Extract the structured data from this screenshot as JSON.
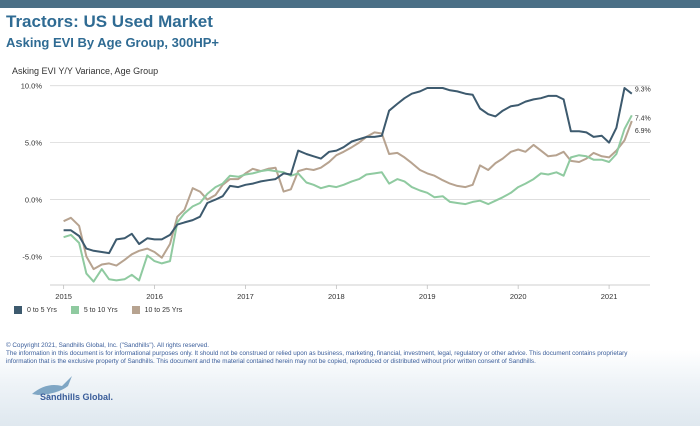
{
  "header": {
    "title": "Tractors:  US Used Market",
    "subtitle": "Asking EVI By Age Group, 300HP+"
  },
  "chart_label": "Asking EVI Y/Y Variance, Age Group",
  "colors": {
    "topbar": "#4a6f86",
    "title": "#2f6b93",
    "series_0_5": "#3d5a6e",
    "series_5_10": "#8fcaa0",
    "series_10_25": "#b7a390",
    "footer_text": "#3a5d9a"
  },
  "chart_data": {
    "type": "line",
    "y_unit": "percent",
    "ylim": [
      -7.5,
      10.5
    ],
    "yticks": [
      10.0,
      5.0,
      0.0,
      -5.0
    ],
    "ytick_labels": [
      "10.0%",
      "5.0%",
      "0.0%",
      "-5.0%"
    ],
    "xlim": [
      2014.85,
      2021.45
    ],
    "xticks": [
      2015,
      2016,
      2017,
      2018,
      2019,
      2020,
      2021
    ],
    "xtick_labels": [
      "2015",
      "2016",
      "2017",
      "2018",
      "2019",
      "2020",
      "2021"
    ],
    "grid": "horizontal",
    "legend_position": "bottom-left",
    "series": [
      {
        "name": "0 to 5 Yrs",
        "color": "#3d5a6e",
        "end_label": "9.3%",
        "points": [
          [
            2015.0,
            -2.7
          ],
          [
            2015.08,
            -2.7
          ],
          [
            2015.17,
            -3.2
          ],
          [
            2015.25,
            -4.3
          ],
          [
            2015.33,
            -4.5
          ],
          [
            2015.42,
            -4.6
          ],
          [
            2015.5,
            -4.7
          ],
          [
            2015.58,
            -3.5
          ],
          [
            2015.67,
            -3.4
          ],
          [
            2015.75,
            -3.0
          ],
          [
            2015.83,
            -3.9
          ],
          [
            2015.92,
            -3.4
          ],
          [
            2016.0,
            -3.5
          ],
          [
            2016.08,
            -3.5
          ],
          [
            2016.17,
            -3.1
          ],
          [
            2016.25,
            -2.2
          ],
          [
            2016.33,
            -2.0
          ],
          [
            2016.42,
            -1.8
          ],
          [
            2016.5,
            -1.5
          ],
          [
            2016.58,
            -0.3
          ],
          [
            2016.67,
            0.0
          ],
          [
            2016.75,
            0.3
          ],
          [
            2016.83,
            1.2
          ],
          [
            2016.92,
            1.1
          ],
          [
            2017.0,
            1.3
          ],
          [
            2017.08,
            1.4
          ],
          [
            2017.17,
            1.6
          ],
          [
            2017.25,
            1.7
          ],
          [
            2017.33,
            1.8
          ],
          [
            2017.42,
            2.3
          ],
          [
            2017.5,
            2.2
          ],
          [
            2017.58,
            4.3
          ],
          [
            2017.67,
            4.0
          ],
          [
            2017.75,
            3.8
          ],
          [
            2017.83,
            3.6
          ],
          [
            2017.92,
            4.2
          ],
          [
            2018.0,
            4.3
          ],
          [
            2018.08,
            4.6
          ],
          [
            2018.17,
            5.1
          ],
          [
            2018.25,
            5.3
          ],
          [
            2018.33,
            5.5
          ],
          [
            2018.42,
            5.5
          ],
          [
            2018.5,
            5.6
          ],
          [
            2018.58,
            7.8
          ],
          [
            2018.67,
            8.4
          ],
          [
            2018.75,
            8.9
          ],
          [
            2018.83,
            9.3
          ],
          [
            2018.92,
            9.5
          ],
          [
            2019.0,
            9.8
          ],
          [
            2019.08,
            9.8
          ],
          [
            2019.17,
            9.8
          ],
          [
            2019.25,
            9.6
          ],
          [
            2019.33,
            9.5
          ],
          [
            2019.42,
            9.3
          ],
          [
            2019.5,
            9.2
          ],
          [
            2019.58,
            8.0
          ],
          [
            2019.67,
            7.5
          ],
          [
            2019.75,
            7.3
          ],
          [
            2019.83,
            7.8
          ],
          [
            2019.92,
            8.2
          ],
          [
            2020.0,
            8.3
          ],
          [
            2020.08,
            8.6
          ],
          [
            2020.17,
            8.8
          ],
          [
            2020.25,
            8.9
          ],
          [
            2020.33,
            9.1
          ],
          [
            2020.42,
            9.1
          ],
          [
            2020.5,
            8.8
          ],
          [
            2020.58,
            6.0
          ],
          [
            2020.67,
            6.0
          ],
          [
            2020.75,
            5.9
          ],
          [
            2020.83,
            5.5
          ],
          [
            2020.92,
            5.6
          ],
          [
            2021.0,
            5.0
          ],
          [
            2021.08,
            6.3
          ],
          [
            2021.17,
            9.8
          ],
          [
            2021.25,
            9.3
          ]
        ]
      },
      {
        "name": "5 to 10 Yrs",
        "color": "#8fcaa0",
        "end_label": "7.4%",
        "points": [
          [
            2015.0,
            -3.3
          ],
          [
            2015.08,
            -3.1
          ],
          [
            2015.17,
            -3.8
          ],
          [
            2015.25,
            -6.5
          ],
          [
            2015.33,
            -7.2
          ],
          [
            2015.42,
            -6.1
          ],
          [
            2015.5,
            -7.0
          ],
          [
            2015.58,
            -7.1
          ],
          [
            2015.67,
            -7.0
          ],
          [
            2015.75,
            -6.6
          ],
          [
            2015.83,
            -7.1
          ],
          [
            2015.92,
            -4.9
          ],
          [
            2016.0,
            -5.4
          ],
          [
            2016.08,
            -5.6
          ],
          [
            2016.17,
            -5.4
          ],
          [
            2016.25,
            -2.0
          ],
          [
            2016.33,
            -1.2
          ],
          [
            2016.42,
            -0.6
          ],
          [
            2016.5,
            -0.3
          ],
          [
            2016.58,
            0.5
          ],
          [
            2016.67,
            1.1
          ],
          [
            2016.75,
            1.4
          ],
          [
            2016.83,
            2.1
          ],
          [
            2016.92,
            2.0
          ],
          [
            2017.0,
            2.2
          ],
          [
            2017.08,
            2.3
          ],
          [
            2017.17,
            2.5
          ],
          [
            2017.25,
            2.6
          ],
          [
            2017.33,
            2.5
          ],
          [
            2017.42,
            2.4
          ],
          [
            2017.5,
            2.1
          ],
          [
            2017.58,
            2.3
          ],
          [
            2017.67,
            1.5
          ],
          [
            2017.75,
            1.3
          ],
          [
            2017.83,
            1.0
          ],
          [
            2017.92,
            1.2
          ],
          [
            2018.0,
            1.1
          ],
          [
            2018.08,
            1.3
          ],
          [
            2018.17,
            1.6
          ],
          [
            2018.25,
            1.8
          ],
          [
            2018.33,
            2.2
          ],
          [
            2018.42,
            2.3
          ],
          [
            2018.5,
            2.4
          ],
          [
            2018.58,
            1.4
          ],
          [
            2018.67,
            1.8
          ],
          [
            2018.75,
            1.6
          ],
          [
            2018.83,
            1.1
          ],
          [
            2018.92,
            0.8
          ],
          [
            2019.0,
            0.6
          ],
          [
            2019.08,
            0.2
          ],
          [
            2019.17,
            0.3
          ],
          [
            2019.25,
            -0.2
          ],
          [
            2019.33,
            -0.3
          ],
          [
            2019.42,
            -0.4
          ],
          [
            2019.5,
            -0.2
          ],
          [
            2019.58,
            -0.1
          ],
          [
            2019.67,
            -0.4
          ],
          [
            2019.75,
            -0.1
          ],
          [
            2019.83,
            0.2
          ],
          [
            2019.92,
            0.6
          ],
          [
            2020.0,
            1.1
          ],
          [
            2020.08,
            1.4
          ],
          [
            2020.17,
            1.8
          ],
          [
            2020.25,
            2.3
          ],
          [
            2020.33,
            2.2
          ],
          [
            2020.42,
            2.4
          ],
          [
            2020.5,
            2.1
          ],
          [
            2020.58,
            3.7
          ],
          [
            2020.67,
            3.9
          ],
          [
            2020.75,
            3.8
          ],
          [
            2020.83,
            3.5
          ],
          [
            2020.92,
            3.5
          ],
          [
            2021.0,
            3.3
          ],
          [
            2021.08,
            4.0
          ],
          [
            2021.17,
            6.2
          ],
          [
            2021.25,
            7.4
          ]
        ]
      },
      {
        "name": "10 to 25 Yrs",
        "color": "#b7a390",
        "end_label": "6.9%",
        "points": [
          [
            2015.0,
            -1.9
          ],
          [
            2015.08,
            -1.6
          ],
          [
            2015.17,
            -2.3
          ],
          [
            2015.25,
            -5.0
          ],
          [
            2015.33,
            -6.1
          ],
          [
            2015.42,
            -5.7
          ],
          [
            2015.5,
            -5.6
          ],
          [
            2015.58,
            -5.8
          ],
          [
            2015.67,
            -5.3
          ],
          [
            2015.75,
            -4.8
          ],
          [
            2015.83,
            -4.5
          ],
          [
            2015.92,
            -4.3
          ],
          [
            2016.0,
            -4.6
          ],
          [
            2016.08,
            -5.1
          ],
          [
            2016.17,
            -3.9
          ],
          [
            2016.25,
            -1.5
          ],
          [
            2016.33,
            -0.9
          ],
          [
            2016.42,
            1.0
          ],
          [
            2016.5,
            0.7
          ],
          [
            2016.58,
            0.0
          ],
          [
            2016.67,
            0.4
          ],
          [
            2016.75,
            1.3
          ],
          [
            2016.83,
            1.8
          ],
          [
            2016.92,
            1.8
          ],
          [
            2017.0,
            2.3
          ],
          [
            2017.08,
            2.7
          ],
          [
            2017.17,
            2.5
          ],
          [
            2017.25,
            2.7
          ],
          [
            2017.33,
            2.8
          ],
          [
            2017.42,
            0.7
          ],
          [
            2017.5,
            0.9
          ],
          [
            2017.58,
            2.5
          ],
          [
            2017.67,
            2.7
          ],
          [
            2017.75,
            2.6
          ],
          [
            2017.83,
            2.8
          ],
          [
            2017.92,
            3.3
          ],
          [
            2018.0,
            3.9
          ],
          [
            2018.08,
            4.2
          ],
          [
            2018.17,
            4.6
          ],
          [
            2018.25,
            5.0
          ],
          [
            2018.33,
            5.5
          ],
          [
            2018.42,
            5.9
          ],
          [
            2018.5,
            5.8
          ],
          [
            2018.58,
            4.0
          ],
          [
            2018.67,
            4.1
          ],
          [
            2018.75,
            3.7
          ],
          [
            2018.83,
            3.2
          ],
          [
            2018.92,
            2.6
          ],
          [
            2019.0,
            2.3
          ],
          [
            2019.08,
            2.1
          ],
          [
            2019.17,
            1.7
          ],
          [
            2019.25,
            1.4
          ],
          [
            2019.33,
            1.2
          ],
          [
            2019.42,
            1.1
          ],
          [
            2019.5,
            1.3
          ],
          [
            2019.58,
            3.0
          ],
          [
            2019.67,
            2.6
          ],
          [
            2019.75,
            3.2
          ],
          [
            2019.83,
            3.6
          ],
          [
            2019.92,
            4.2
          ],
          [
            2020.0,
            4.4
          ],
          [
            2020.08,
            4.2
          ],
          [
            2020.17,
            4.8
          ],
          [
            2020.25,
            4.3
          ],
          [
            2020.33,
            3.8
          ],
          [
            2020.42,
            3.9
          ],
          [
            2020.5,
            4.2
          ],
          [
            2020.58,
            3.4
          ],
          [
            2020.67,
            3.3
          ],
          [
            2020.75,
            3.6
          ],
          [
            2020.83,
            4.1
          ],
          [
            2020.92,
            3.8
          ],
          [
            2021.0,
            3.7
          ],
          [
            2021.08,
            4.3
          ],
          [
            2021.17,
            5.2
          ],
          [
            2021.25,
            6.9
          ]
        ]
      }
    ]
  },
  "legend": [
    {
      "label": "0 to 5 Yrs",
      "color": "#3d5a6e"
    },
    {
      "label": "5 to 10 Yrs",
      "color": "#8fcaa0"
    },
    {
      "label": "10 to 25 Yrs",
      "color": "#b7a390"
    }
  ],
  "footer": {
    "copyright": "© Copyright 2021, Sandhills Global, Inc. (\"Sandhills\"). All rights reserved.",
    "disclaimer_1": "The information in this document is for informational purposes only.  It should not be construed or relied upon as business, marketing, financial, investment, legal, regulatory or other advice. This document contains proprietary",
    "disclaimer_2": "information that is the exclusive property of Sandhills. This document and the material contained herein may not be copied, reproduced or distributed without prior written consent of Sandhills."
  },
  "brand": {
    "logo_text": "Sandhills Global."
  }
}
